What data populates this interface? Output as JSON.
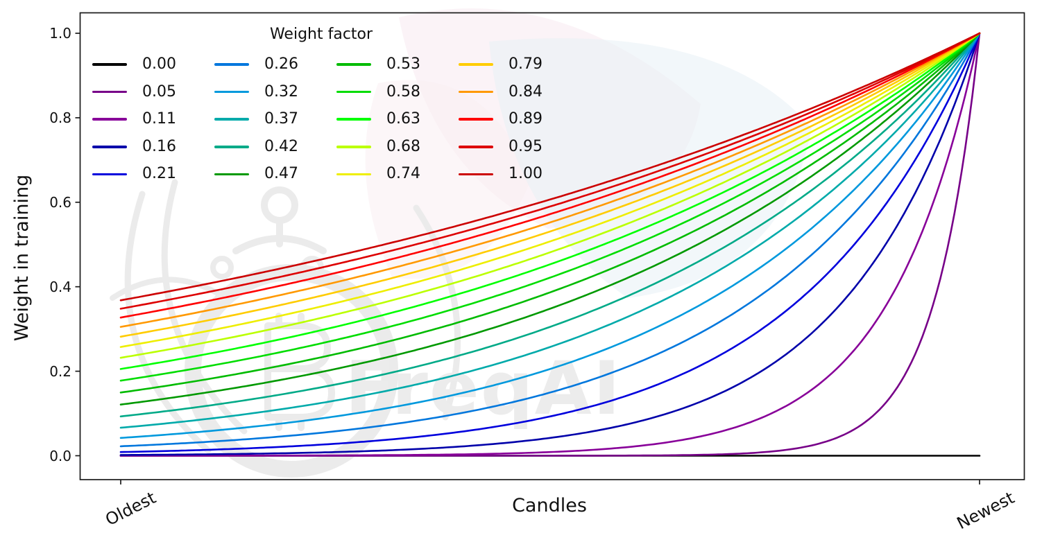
{
  "figure": {
    "xlabel": "Candles",
    "ylabel": "Weight in training",
    "x_tick_labels": [
      "Oldest",
      "Newest"
    ],
    "y_tick_labels": [
      "0.0",
      "0.2",
      "0.4",
      "0.6",
      "0.8",
      "1.0"
    ]
  },
  "legend": {
    "title": "Weight factor",
    "columns": 4,
    "rows": 5
  },
  "watermark": {
    "text": "FreqAI"
  },
  "chart_data": {
    "type": "line",
    "title": "",
    "xlabel": "Candles",
    "ylabel": "Weight in training",
    "x_range_labels": [
      "Oldest",
      "Newest"
    ],
    "ylim": [
      0,
      1.05
    ],
    "y_ticks": [
      0.0,
      0.2,
      0.4,
      0.6,
      0.8,
      1.0
    ],
    "grid": false,
    "legend_title": "Weight factor",
    "legend_position": "upper-left, 4 columns, no frame",
    "formula": "weight(x) = exp(-(1 - x) / weight_factor), x in [0,1] from Oldest to Newest; weight_factor = 0 gives a flat 0 line",
    "n_series": 20,
    "series": [
      {
        "name": "0.00",
        "weight_factor": 0.0,
        "color": "#000000",
        "value_at_oldest": 0.0,
        "value_at_newest": 0.0
      },
      {
        "name": "0.05",
        "weight_factor": 0.0526,
        "color": "#770088",
        "value_at_oldest": 0.0,
        "value_at_newest": 1.0
      },
      {
        "name": "0.11",
        "weight_factor": 0.1053,
        "color": "#880099",
        "value_at_oldest": 0.0001,
        "value_at_newest": 1.0
      },
      {
        "name": "0.16",
        "weight_factor": 0.1579,
        "color": "#0000AA",
        "value_at_oldest": 0.0018,
        "value_at_newest": 1.0
      },
      {
        "name": "0.21",
        "weight_factor": 0.2105,
        "color": "#0000DD",
        "value_at_oldest": 0.0087,
        "value_at_newest": 1.0
      },
      {
        "name": "0.26",
        "weight_factor": 0.2632,
        "color": "#0077DD",
        "value_at_oldest": 0.0224,
        "value_at_newest": 1.0
      },
      {
        "name": "0.32",
        "weight_factor": 0.3158,
        "color": "#0099DD",
        "value_at_oldest": 0.0421,
        "value_at_newest": 1.0
      },
      {
        "name": "0.37",
        "weight_factor": 0.3684,
        "color": "#00AAAA",
        "value_at_oldest": 0.0663,
        "value_at_newest": 1.0
      },
      {
        "name": "0.42",
        "weight_factor": 0.4211,
        "color": "#00AA88",
        "value_at_oldest": 0.093,
        "value_at_newest": 1.0
      },
      {
        "name": "0.47",
        "weight_factor": 0.4737,
        "color": "#009900",
        "value_at_oldest": 0.1211,
        "value_at_newest": 1.0
      },
      {
        "name": "0.53",
        "weight_factor": 0.5263,
        "color": "#00BB00",
        "value_at_oldest": 0.1496,
        "value_at_newest": 1.0
      },
      {
        "name": "0.58",
        "weight_factor": 0.5789,
        "color": "#00DD00",
        "value_at_oldest": 0.1778,
        "value_at_newest": 1.0
      },
      {
        "name": "0.63",
        "weight_factor": 0.6316,
        "color": "#00FF00",
        "value_at_oldest": 0.2054,
        "value_at_newest": 1.0
      },
      {
        "name": "0.68",
        "weight_factor": 0.6842,
        "color": "#BBFF00",
        "value_at_oldest": 0.2319,
        "value_at_newest": 1.0
      },
      {
        "name": "0.74",
        "weight_factor": 0.7368,
        "color": "#EEEE00",
        "value_at_oldest": 0.2575,
        "value_at_newest": 1.0
      },
      {
        "name": "0.79",
        "weight_factor": 0.7895,
        "color": "#FFCC00",
        "value_at_oldest": 0.2818,
        "value_at_newest": 1.0
      },
      {
        "name": "0.84",
        "weight_factor": 0.8421,
        "color": "#FF9900",
        "value_at_oldest": 0.305,
        "value_at_newest": 1.0
      },
      {
        "name": "0.89",
        "weight_factor": 0.8947,
        "color": "#FF0000",
        "value_at_oldest": 0.3271,
        "value_at_newest": 1.0
      },
      {
        "name": "0.95",
        "weight_factor": 0.9474,
        "color": "#DD0000",
        "value_at_oldest": 0.348,
        "value_at_newest": 1.0
      },
      {
        "name": "1.00",
        "weight_factor": 1.0,
        "color": "#CC0000",
        "value_at_oldest": 0.3679,
        "value_at_newest": 1.0
      }
    ]
  }
}
